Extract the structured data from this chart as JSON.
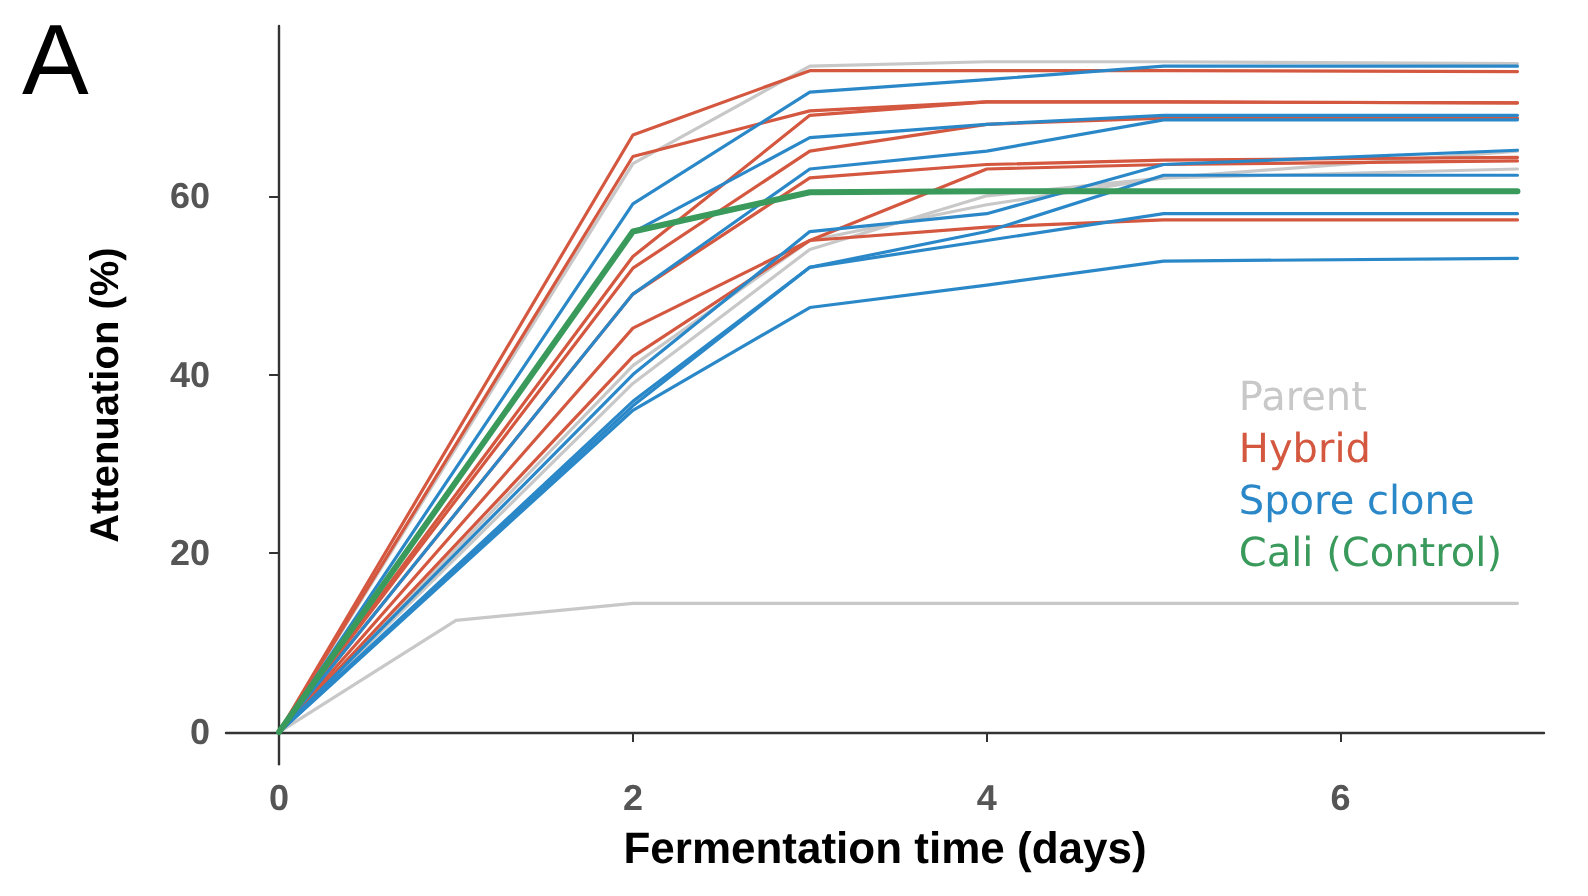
{
  "chart_data": {
    "type": "line",
    "title": "A",
    "xlabel": "Fermentation time (days)",
    "ylabel": "Attenuation (%)",
    "x": [
      0,
      2,
      3,
      4,
      5,
      7
    ],
    "xlim": [
      -0.3,
      7.15
    ],
    "xticks": [
      0,
      2,
      4,
      6
    ],
    "ylim": [
      -3.6,
      79
    ],
    "yticks": [
      0,
      20,
      40,
      60
    ],
    "grid": false,
    "legend": "right",
    "marker": "none",
    "line_style": "solid",
    "series": [
      {
        "name": "Parent",
        "color": "#c8c8c8",
        "values": [
          0,
          63.6,
          74.5,
          75,
          75,
          74.8
        ]
      },
      {
        "color": "#c8c8c8",
        "values": [
          0,
          41,
          55,
          59,
          62,
          65
        ]
      },
      {
        "color": "#c8c8c8",
        "values": [
          0,
          39,
          54,
          60,
          62,
          63
        ]
      },
      {
        "color": "#c8c8c8",
        "x": [
          0,
          1,
          2,
          3,
          4,
          5,
          7
        ],
        "values": [
          0,
          12.5,
          14.4,
          14.4,
          14.4,
          14.4,
          14.4
        ]
      },
      {
        "name": "Hybrid",
        "color": "#d4573f",
        "values": [
          0,
          66.8,
          74,
          74,
          74,
          73.9
        ]
      },
      {
        "color": "#d4573f",
        "values": [
          0,
          64.4,
          69.5,
          70.5,
          70.5,
          70.4
        ]
      },
      {
        "color": "#d4573f",
        "values": [
          0,
          53.2,
          69,
          70.5,
          70.5,
          70.4
        ]
      },
      {
        "color": "#d4573f",
        "values": [
          0,
          51.9,
          65,
          68,
          68.7,
          68.7
        ]
      },
      {
        "color": "#d4573f",
        "values": [
          0,
          49,
          62,
          63.5,
          64,
          64.3
        ]
      },
      {
        "color": "#d4573f",
        "values": [
          0,
          45.2,
          55,
          63,
          63.5,
          63.9
        ]
      },
      {
        "color": "#d4573f",
        "values": [
          0,
          42,
          55,
          56.5,
          57.3,
          57.3
        ]
      },
      {
        "name": "Spore clone",
        "color": "#2b88c8",
        "values": [
          0,
          59.1,
          71.6,
          73,
          74.5,
          74.5
        ]
      },
      {
        "color": "#2b88c8",
        "values": [
          0,
          55.9,
          66.5,
          68,
          69,
          69
        ]
      },
      {
        "color": "#2b88c8",
        "values": [
          0,
          49,
          63,
          65,
          68.5,
          68.5
        ]
      },
      {
        "color": "#2b88c8",
        "values": [
          0,
          40,
          56,
          58,
          63.5,
          65.1
        ]
      },
      {
        "color": "#2b88c8",
        "values": [
          0,
          37,
          52,
          56,
          62.3,
          62.3
        ]
      },
      {
        "color": "#2b88c8",
        "values": [
          0,
          36.5,
          52,
          55,
          58,
          58
        ]
      },
      {
        "color": "#2b88c8",
        "values": [
          0,
          36,
          47.5,
          50,
          52.7,
          53
        ]
      },
      {
        "name": "Cali (Control)",
        "color": "#3a9a5b",
        "values": [
          0,
          56,
          60.4,
          60.5,
          60.5,
          60.5
        ]
      }
    ]
  }
}
